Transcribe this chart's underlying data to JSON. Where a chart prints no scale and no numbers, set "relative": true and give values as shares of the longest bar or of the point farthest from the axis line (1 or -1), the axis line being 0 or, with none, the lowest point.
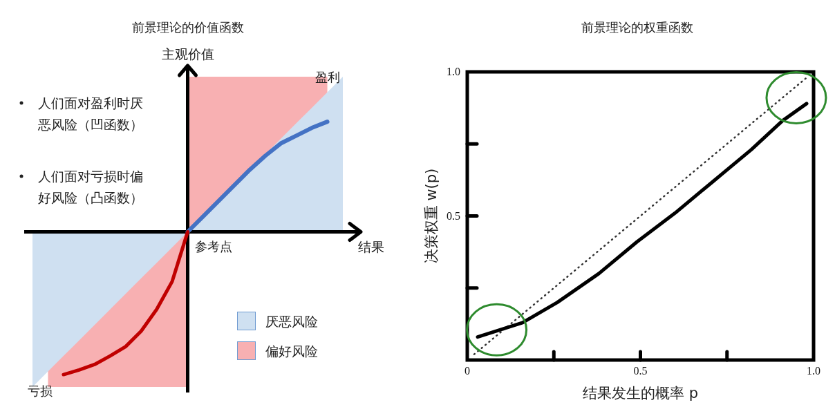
{
  "chart_data": [
    {
      "type": "line",
      "relative": true,
      "title": "前景理论的价值函数",
      "xlabel": "结果",
      "ylabel": "主观价值",
      "categories": [
        null,
        null,
        null,
        null,
        null,
        null,
        null,
        null,
        null,
        null,
        null,
        null,
        null,
        null,
        null,
        null,
        null,
        null,
        null,
        null,
        null
      ],
      "legend": "bottom right",
      "series": [
        {
          "name": "厌恶风险",
          "type": "area",
          "color": "#cfe0f1",
          "values": [
            null,
            null,
            null,
            null,
            null,
            null,
            null,
            null,
            null,
            null,
            0,
            0.1,
            0.2,
            0.3,
            0.4,
            0.5,
            0.6,
            0.7,
            0.8,
            0.9,
            1
          ]
        },
        {
          "type": "area",
          "color": "#cfe0f1",
          "values": [
            -1,
            -0.9,
            -0.8,
            -0.7,
            -0.6,
            -0.5,
            -0.4,
            -0.3,
            -0.2,
            -0.1,
            0,
            null,
            null,
            null,
            null,
            null,
            null,
            null,
            null,
            null,
            null
          ]
        },
        {
          "name": "偏好风险",
          "type": "area",
          "color": "#f8b0b2",
          "values": [
            null,
            null,
            null,
            null,
            null,
            null,
            null,
            null,
            null,
            null,
            1,
            1,
            1,
            1,
            1,
            1,
            1,
            1,
            1,
            1,
            null
          ]
        },
        {
          "type": "area",
          "color": "#f8b0b2",
          "values": [
            null,
            -1,
            -1,
            -1,
            -1,
            -1,
            -1,
            -1,
            -1,
            -1,
            -1,
            null,
            null,
            null,
            null,
            null,
            null,
            null,
            null,
            null,
            null
          ]
        },
        {
          "color": "#4472c4",
          "values": [
            null,
            null,
            null,
            null,
            null,
            null,
            null,
            null,
            null,
            null,
            0,
            0.1,
            0.2,
            0.3,
            0.4,
            0.49,
            0.57,
            0.62,
            0.67,
            0.71,
            null
          ]
        },
        {
          "color": "#c00000",
          "values": [
            null,
            null,
            -0.92,
            -0.89,
            -0.855,
            -0.8,
            -0.74,
            -0.64,
            -0.5,
            -0.32,
            0,
            null,
            null,
            null,
            null,
            null,
            null,
            null,
            null,
            null,
            null
          ]
        }
      ],
      "annotations": [
        "盈利",
        "亏损",
        "参考点",
        "人们面对盈利时厌恶风险（凹函数）",
        "人们面对亏损时偏好风险（凸函数）"
      ]
    },
    {
      "type": "line",
      "title": "前景理论的权重函数",
      "xlabel": "结果发生的概率 p",
      "ylabel": "决策权重 w(p)",
      "xlim": [
        0,
        1
      ],
      "ylim": [
        0,
        1
      ],
      "xticks": [
        {
          "value": 0,
          "label": "0"
        },
        {
          "value": 0.25,
          "label": null
        },
        {
          "value": 0.5,
          "label": "0.5"
        },
        {
          "value": 0.75,
          "label": null
        },
        {
          "value": 1,
          "label": "1.0"
        }
      ],
      "yticks": [
        {
          "value": 0.25,
          "label": null
        },
        {
          "value": 0.5,
          "label": "0.5"
        },
        {
          "value": 0.75,
          "label": null
        },
        {
          "value": 1,
          "label": "1.0"
        }
      ],
      "series": [
        {
          "color": "#333333",
          "line_style": "dotted",
          "x": [
            0.02,
            0.98
          ],
          "values": [
            0.02,
            0.98
          ]
        },
        {
          "color": "#000000",
          "x": [
            0.03,
            0.16,
            0.26,
            0.38,
            0.49,
            0.6,
            0.71,
            0.82,
            0.91,
            0.98
          ],
          "values": [
            0.08,
            0.13,
            0.2,
            0.3,
            0.41,
            0.51,
            0.62,
            0.73,
            0.83,
            0.89
          ]
        }
      ]
    }
  ]
}
